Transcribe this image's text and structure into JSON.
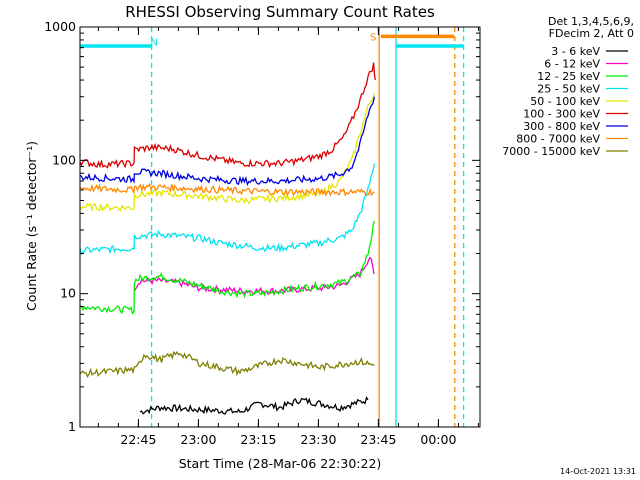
{
  "chart_data": {
    "type": "line",
    "title": "RHESSI Observing Summary Count Rates",
    "xlabel": "Start Time (28-Mar-06 22:30:22)",
    "ylabel": "Count Rate (s⁻¹ detector⁻¹)",
    "yscale": "log",
    "ylim": [
      1,
      1000
    ],
    "xlim": [
      0,
      100
    ],
    "x_unit": "minutes since 22:30:22",
    "x_ticks": [
      {
        "label": "22:45",
        "value": 14.6
      },
      {
        "label": "23:00",
        "value": 29.6
      },
      {
        "label": "23:15",
        "value": 44.6
      },
      {
        "label": "23:30",
        "value": 59.6
      },
      {
        "label": "23:45",
        "value": 74.6
      },
      {
        "label": "00:00",
        "value": 89.6
      }
    ],
    "y_ticks": [
      {
        "label": "1",
        "value": 1
      },
      {
        "label": "10",
        "value": 10
      },
      {
        "label": "100",
        "value": 100
      },
      {
        "label": "1000",
        "value": 1000
      }
    ],
    "legend_header": [
      "Det 1,3,4,5,6,9,",
      "FDecim 2, Att 0"
    ],
    "legend_placement": "right",
    "series": [
      {
        "name": "3 - 6 keV",
        "color": "#000000",
        "x": [
          15,
          20,
          40,
          45,
          50,
          55,
          60,
          65,
          72
        ],
        "y": [
          1.3,
          1.4,
          1.3,
          1.5,
          1.4,
          1.6,
          1.5,
          1.4,
          1.6
        ]
      },
      {
        "name": "6 - 12 keV",
        "color": "#ff00cc",
        "x": [
          13.5,
          15,
          20,
          25,
          30,
          40,
          50,
          55,
          60,
          65,
          70,
          72.5,
          73.5
        ],
        "y": [
          11,
          12.5,
          12.5,
          12,
          11,
          10.5,
          10.5,
          10.8,
          11,
          11.5,
          14,
          19,
          14
        ]
      },
      {
        "name": "12 - 25 keV",
        "color": "#00ee00",
        "x": [
          0,
          13.5,
          13.6,
          15,
          20,
          25,
          30,
          35,
          40,
          45,
          50,
          55,
          60,
          65,
          70,
          72,
          73,
          73.6
        ],
        "y": [
          8,
          7.5,
          12.5,
          13,
          13.5,
          12.5,
          11.5,
          10.5,
          10,
          10,
          10.5,
          11,
          11.5,
          12,
          14,
          20,
          28,
          35
        ]
      },
      {
        "name": "25 - 50 keV",
        "color": "#00e5ee",
        "x": [
          0,
          13.5,
          13.6,
          20,
          25,
          30,
          35,
          40,
          45,
          50,
          55,
          60,
          62,
          65,
          68,
          70,
          72,
          73.6
        ],
        "y": [
          21,
          22,
          27,
          28,
          27,
          26,
          24,
          23,
          22,
          22,
          23,
          24,
          25,
          26,
          30,
          40,
          60,
          95
        ]
      },
      {
        "name": "50 - 100 keV",
        "color": "#e6e600",
        "x": [
          0,
          13.5,
          13.6,
          20,
          30,
          40,
          50,
          60,
          65,
          68,
          70,
          72,
          73.6
        ],
        "y": [
          45,
          44,
          55,
          57,
          54,
          50,
          52,
          56,
          70,
          100,
          160,
          250,
          320
        ]
      },
      {
        "name": "100 - 300 keV",
        "color": "#dd0000",
        "x": [
          0,
          5,
          13.5,
          13.6,
          18,
          23,
          30,
          40,
          50,
          55,
          60,
          63,
          66,
          68,
          70,
          72,
          73.4,
          73.8
        ],
        "y": [
          98,
          93,
          95,
          120,
          125,
          122,
          108,
          95,
          95,
          100,
          108,
          120,
          150,
          200,
          280,
          420,
          520,
          400
        ]
      },
      {
        "name": "300 - 800 keV",
        "color": "#0000dd",
        "x": [
          0,
          13.5,
          13.6,
          20,
          30,
          40,
          50,
          60,
          65,
          68,
          70,
          72,
          73.6
        ],
        "y": [
          75,
          72,
          82,
          80,
          73,
          70,
          70,
          73,
          78,
          90,
          130,
          220,
          300
        ]
      },
      {
        "name": "800 - 7000 keV",
        "color": "#ff8800",
        "x": [
          0,
          13.5,
          13.6,
          20,
          30,
          40,
          50,
          60,
          70,
          73.6
        ],
        "y": [
          62,
          60,
          63,
          63,
          61,
          59,
          58,
          58,
          58,
          58
        ]
      },
      {
        "name": "7000 - 15000 keV",
        "color": "#7f7f00",
        "x": [
          0,
          14,
          16,
          20,
          25,
          30,
          40,
          50,
          60,
          70,
          73.6
        ],
        "y": [
          2.5,
          2.7,
          3.5,
          3.2,
          3.6,
          3.0,
          2.6,
          3.2,
          2.8,
          3.1,
          2.9
        ]
      }
    ],
    "annotations": [
      {
        "text": "N",
        "color": "#00e5ee",
        "x": 17.6,
        "y": 780
      },
      {
        "text": "S",
        "color": "#ff8800",
        "x": 72.5,
        "y": 850
      }
    ],
    "vertical_lines": [
      {
        "x": 17.9,
        "color": "#00e5ee",
        "style": "dashed"
      },
      {
        "x": 74.8,
        "color": "#ff8800",
        "style": "solid"
      },
      {
        "x": 79.0,
        "color": "#00e5ee",
        "style": "solid"
      },
      {
        "x": 93.7,
        "color": "#ff8800",
        "style": "dashed"
      },
      {
        "x": 95.9,
        "color": "#00e5ee",
        "style": "dashed"
      }
    ],
    "horizontal_bars": [
      {
        "x": [
          0,
          17.9
        ],
        "y": 720,
        "color": "#00e5ee"
      },
      {
        "x": [
          75.2,
          93.5
        ],
        "y": 850,
        "color": "#ff8800"
      },
      {
        "x": [
          79.0,
          95.9
        ],
        "y": 720,
        "color": "#00e5ee"
      }
    ],
    "grid": false
  },
  "footer": {
    "timestamp": "14-Oct-2021 13:31"
  }
}
